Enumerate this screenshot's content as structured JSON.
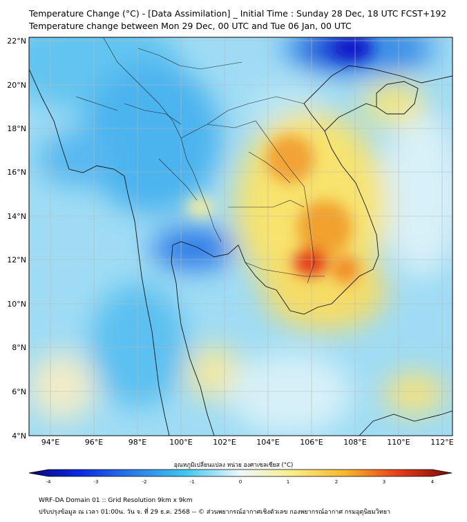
{
  "title": {
    "line1": "Temperature Change (°C) - [Data Assimilation] _ Initial Time : Sunday 28 Dec, 18 UTC FCST+192",
    "line2": "Temperature change between Mon 29 Dec, 00 UTC and Tue 06 Jan, 00 UTC"
  },
  "axes": {
    "lat_labels": [
      "22°N",
      "20°N",
      "18°N",
      "16°N",
      "14°N",
      "12°N",
      "10°N",
      "8°N",
      "6°N",
      "4°N"
    ],
    "lon_labels": [
      "94°E",
      "96°E",
      "98°E",
      "100°E",
      "102°E",
      "104°E",
      "106°E",
      "108°E",
      "110°E",
      "112°E"
    ]
  },
  "colorbar": {
    "title": "อุณหภูมิเปลี่ยนแปลง หน่วย องศาเซลเซียส (°C)",
    "ticks": [
      "-4",
      "-3",
      "-2",
      "-1",
      "0",
      "1",
      "2",
      "3",
      "4"
    ]
  },
  "footer": {
    "line1": "WRF-DA Domain 01 :: Grid Resolution 9km x 9km",
    "line2": "ปรับปรุงข้อมูล ณ เวลา 01:00น. วัน จ. ที่ 29 ธ.ค. 2568 -- © ส่วนพยากรณ์อากาศเชิงตัวเลข กองพยากรณ์อากาศ กรมอุตุนิยมวิทยา"
  },
  "colors": {
    "cold": "#0a18c8",
    "cool": "#3fa9f0",
    "neutral": "#f2f8fb",
    "warm": "#f6e36a",
    "hot": "#e8401a"
  }
}
